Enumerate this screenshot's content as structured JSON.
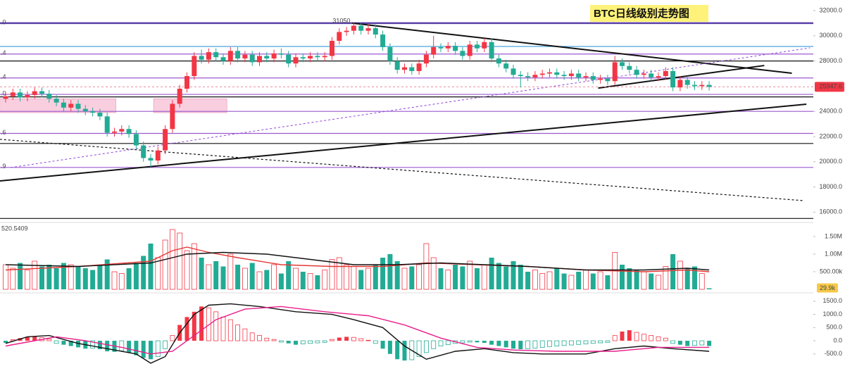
{
  "chart_data": [
    {
      "type": "candlestick",
      "title": "BTC日线级别走势图",
      "up_color": "#f23645",
      "down_color": "#22ab94",
      "open": [
        25000,
        25200,
        25500,
        25100,
        25300,
        25600,
        25400,
        25000,
        24700,
        24300,
        24600,
        24200,
        24000,
        23900,
        23600,
        22300,
        22400,
        22600,
        22200,
        21300,
        20300,
        20100,
        20900,
        22600,
        24600,
        25800,
        26800,
        28400,
        28100,
        28700,
        28300,
        28000,
        28800,
        28200,
        28500,
        27900,
        28400,
        28200,
        28600,
        28500,
        27800,
        28300,
        28200,
        28400,
        28300,
        28400,
        29600,
        30300,
        30400,
        30800,
        30400,
        30600,
        30100,
        29100,
        28000,
        27300,
        27500,
        27200,
        27800,
        28500,
        29100,
        29000,
        29200,
        28800,
        28400,
        29300,
        29000,
        29500,
        28200,
        27800,
        27400,
        26900,
        26800,
        26700,
        26900,
        27000,
        27100,
        26900,
        26800,
        27000,
        26700,
        26800,
        26500,
        26600,
        26400,
        27900,
        27600,
        27300,
        26900,
        27000,
        26700,
        26800,
        27200,
        25900,
        26500,
        26100,
        26000,
        26100
      ],
      "high": [
        25500,
        25800,
        25800,
        25600,
        25900,
        25900,
        25700,
        25300,
        25000,
        24900,
        24900,
        24500,
        24300,
        24200,
        23900,
        22700,
        22900,
        22900,
        22500,
        21600,
        20600,
        21200,
        22900,
        24900,
        26100,
        27100,
        28700,
        28900,
        29000,
        29000,
        28600,
        29100,
        29100,
        28800,
        28800,
        28700,
        28700,
        28900,
        29000,
        28800,
        28600,
        28600,
        28700,
        28700,
        28700,
        29900,
        30600,
        30700,
        31050,
        31000,
        30900,
        30900,
        30400,
        29400,
        28300,
        27800,
        27800,
        28100,
        28800,
        30000,
        29400,
        29500,
        29500,
        29100,
        29600,
        29600,
        29800,
        29800,
        28500,
        28100,
        27700,
        27200,
        27100,
        27200,
        27300,
        27400,
        27400,
        27200,
        27300,
        27300,
        27100,
        27100,
        26900,
        26900,
        28400,
        28200,
        27900,
        27600,
        27300,
        27300,
        27100,
        27500,
        27500,
        26800,
        26800,
        26400,
        26400,
        26400
      ],
      "low": [
        24700,
        24900,
        24800,
        24800,
        25000,
        25100,
        24700,
        24400,
        24000,
        24000,
        23900,
        23700,
        23600,
        23300,
        22000,
        22000,
        22100,
        21900,
        21000,
        20000,
        19600,
        19800,
        20600,
        22300,
        24300,
        25500,
        26500,
        27800,
        27800,
        28000,
        27700,
        27700,
        27900,
        27900,
        27600,
        27600,
        27900,
        27900,
        28200,
        27500,
        27500,
        27900,
        27900,
        28000,
        28000,
        28100,
        29300,
        30000,
        30100,
        30100,
        30100,
        29800,
        28800,
        27700,
        27000,
        27000,
        26900,
        26900,
        27500,
        28200,
        28700,
        28700,
        28500,
        28100,
        28100,
        28700,
        28700,
        27900,
        27500,
        27100,
        26600,
        25900,
        26400,
        26400,
        26600,
        26700,
        26600,
        26500,
        26500,
        26400,
        26400,
        26200,
        26200,
        26100,
        26100,
        27300,
        27000,
        26600,
        26600,
        26400,
        26400,
        26500,
        25600,
        25600,
        25800,
        25700,
        25700,
        25650
      ],
      "close": [
        25200,
        25500,
        25100,
        25300,
        25600,
        25400,
        25000,
        24700,
        24300,
        24600,
        24200,
        24000,
        23900,
        23600,
        22300,
        22400,
        22600,
        22200,
        21300,
        20300,
        20100,
        20900,
        22600,
        24600,
        25800,
        26800,
        28400,
        28100,
        28700,
        28300,
        28000,
        28800,
        28200,
        28500,
        27900,
        28400,
        28200,
        28600,
        28500,
        27800,
        28300,
        28200,
        28400,
        28300,
        28400,
        29600,
        30300,
        30400,
        30800,
        30400,
        30600,
        30100,
        29100,
        28000,
        27300,
        27500,
        27200,
        27800,
        28500,
        29100,
        29000,
        29200,
        28800,
        28400,
        29300,
        29000,
        29500,
        28200,
        27800,
        27400,
        26900,
        26800,
        26700,
        26900,
        27000,
        27100,
        26900,
        26800,
        27000,
        26700,
        26800,
        26500,
        26600,
        26400,
        27900,
        27600,
        27300,
        26900,
        27000,
        26700,
        26800,
        27200,
        25900,
        26500,
        26100,
        26000,
        26100,
        25947.6
      ],
      "ylim": [
        15350,
        32840
      ],
      "yticks": [
        {
          "value": 16000,
          "label": "16000.0"
        },
        {
          "value": 18000,
          "label": "18000.0"
        },
        {
          "value": 20000,
          "label": "20000.0"
        },
        {
          "value": 22000,
          "label": "22000.0"
        },
        {
          "value": 24000,
          "label": "24000.0"
        },
        {
          "value": 28000,
          "label": "28000.0"
        },
        {
          "value": 30000,
          "label": "30000.0"
        },
        {
          "value": 32000,
          "label": "32000.0"
        }
      ],
      "levels": [
        {
          "price": 31000,
          "color": "#5b3fa8",
          "width": 2.5,
          "label": ".0"
        },
        {
          "price": 29150,
          "color": "#4aa3df",
          "width": 1.2
        },
        {
          "price": 28550,
          "color": "#9b59d0",
          "width": 1.2,
          "label": ".4"
        },
        {
          "price": 28000,
          "color": "#111111",
          "width": 1.2
        },
        {
          "price": 26650,
          "color": "#9b59d0",
          "width": 1.2,
          "label": ".4"
        },
        {
          "price": 25350,
          "color": "#9b59d0",
          "width": 1.2,
          "label": ".0"
        },
        {
          "price": 25150,
          "color": "#111111",
          "width": 1.2
        },
        {
          "price": 24000,
          "color": "#9b59d0",
          "width": 1.2
        },
        {
          "price": 22250,
          "color": "#9b59d0",
          "width": 1.2,
          "label": ".6"
        },
        {
          "price": 21450,
          "color": "#111111",
          "width": 1.2
        },
        {
          "price": 19550,
          "color": "#9b59d0",
          "width": 1.2,
          "label": ".9"
        },
        {
          "price": 15500,
          "color": "#111111",
          "width": 1.2
        }
      ],
      "trendlines": [
        {
          "points": [
            [
              47.8,
              31000
            ],
            [
              108.4,
              27030
            ]
          ],
          "color": "#111111",
          "width": 2
        },
        {
          "points": [
            [
              -0.8,
              18480
            ],
            [
              110.4,
              24570
            ]
          ],
          "color": "#111111",
          "width": 2
        },
        {
          "points": [
            [
              81.7,
              25850
            ],
            [
              104.6,
              27640
            ]
          ],
          "color": "#111111",
          "width": 2
        },
        {
          "points": [
            [
              0.7,
              19540
            ],
            [
              110.9,
              29040
            ]
          ],
          "color": "#8e44d8",
          "width": 1,
          "dash": true
        },
        {
          "points": [
            [
              -0.8,
              21780
            ],
            [
              109.9,
              16920
            ]
          ],
          "color": "#111111",
          "width": 1.2,
          "dash": true
        }
      ],
      "zones": [
        {
          "x": [
            -0.8,
            15.2
          ],
          "y": [
            23900,
            25000
          ],
          "color": "#f9cfe0"
        },
        {
          "x": [
            20.4,
            30.5
          ],
          "y": [
            23900,
            25000
          ],
          "color": "#f9cfe0"
        }
      ]
    },
    {
      "type": "volume",
      "header": "520.5409",
      "values": [
        700000,
        600000,
        750000,
        550000,
        800000,
        650000,
        700000,
        600000,
        750000,
        700000,
        650000,
        600000,
        550000,
        700000,
        850000,
        500000,
        450000,
        600000,
        750000,
        950000,
        1300000,
        900000,
        1400000,
        1700000,
        1600000,
        1100000,
        1300000,
        900000,
        700000,
        800000,
        650000,
        1000000,
        700000,
        600000,
        750000,
        500000,
        550000,
        700000,
        450000,
        800000,
        600000,
        500000,
        450000,
        400000,
        550000,
        850000,
        900000,
        700000,
        650000,
        550000,
        600000,
        700000,
        900000,
        1000000,
        800000,
        600000,
        650000,
        700000,
        1300000,
        900000,
        600000,
        550000,
        700000,
        650000,
        800000,
        600000,
        700000,
        900000,
        750000,
        650000,
        800000,
        700000,
        500000,
        550000,
        450000,
        500000,
        600000,
        450000,
        400000,
        500000,
        550000,
        450000,
        500000,
        400000,
        1050000,
        700000,
        600000,
        550000,
        500000,
        450000,
        400000,
        650000,
        1000000,
        800000,
        600000,
        650000,
        450000,
        29900
      ],
      "current": {
        "value": 29900,
        "label": "29.9k"
      },
      "ylim": [
        0,
        1800000
      ],
      "yticks": [
        {
          "value": 500000,
          "label": "500.00k"
        },
        {
          "value": 1000000,
          "label": "1.00M"
        },
        {
          "value": 1500000,
          "label": "1.50M"
        }
      ],
      "series": [
        {
          "name": "MA fast",
          "color": "#e53935",
          "x": [
            0,
            10,
            20,
            23,
            25,
            28,
            32,
            38,
            45,
            52,
            58,
            65,
            72,
            80,
            88,
            94,
            97
          ],
          "values": [
            550000,
            650000,
            800000,
            1100000,
            1200000,
            1050000,
            900000,
            700000,
            650000,
            650000,
            750000,
            700000,
            650000,
            550000,
            500000,
            550000,
            500000
          ]
        },
        {
          "name": "MA slow",
          "color": "#111111",
          "x": [
            0,
            10,
            20,
            25,
            30,
            36,
            42,
            48,
            54,
            60,
            66,
            72,
            80,
            88,
            94,
            97
          ],
          "values": [
            700000,
            650000,
            750000,
            1000000,
            1050000,
            1000000,
            850000,
            700000,
            700000,
            750000,
            700000,
            650000,
            550000,
            550000,
            600000,
            550000
          ]
        }
      ]
    },
    {
      "type": "macd",
      "values": [
        -80,
        40,
        100,
        150,
        170,
        120,
        60,
        -100,
        -150,
        -200,
        -250,
        -300,
        -280,
        -320,
        -400,
        -420,
        -380,
        -450,
        -550,
        -650,
        -700,
        -600,
        -300,
        200,
        600,
        900,
        1100,
        1300,
        1250,
        1100,
        900,
        800,
        600,
        450,
        300,
        200,
        100,
        50,
        -50,
        -100,
        -150,
        -120,
        -100,
        -80,
        -60,
        50,
        120,
        150,
        130,
        80,
        20,
        -100,
        -300,
        -500,
        -700,
        -750,
        -720,
        -600,
        -450,
        -300,
        -200,
        -150,
        -100,
        -80,
        -50,
        -60,
        -80,
        -150,
        -200,
        -250,
        -300,
        -320,
        -300,
        -280,
        -250,
        -220,
        -200,
        -180,
        -160,
        -140,
        -120,
        -100,
        -80,
        -60,
        200,
        350,
        400,
        320,
        250,
        200,
        150,
        100,
        -100,
        -150,
        -200,
        -180,
        -160,
        -200
      ],
      "ylim": [
        -960,
        1710
      ],
      "yticks": [
        {
          "value": -500,
          "label": "-500.0"
        },
        {
          "value": 0,
          "label": "0.0"
        },
        {
          "value": 500,
          "label": "500.0"
        },
        {
          "value": 1000,
          "label": "1000.0"
        },
        {
          "value": 1500,
          "label": "1500.0"
        }
      ],
      "series": [
        {
          "name": "MACD",
          "color": "#111111",
          "x": [
            0,
            3,
            6,
            10,
            14,
            18,
            20,
            22,
            24,
            26,
            28,
            31,
            35,
            40,
            45,
            48,
            52,
            55,
            58,
            62,
            66,
            70,
            74,
            80,
            84,
            88,
            92,
            97
          ],
          "values": [
            -100,
            150,
            200,
            -100,
            -300,
            -500,
            -850,
            -600,
            300,
            1000,
            1350,
            1400,
            1300,
            1100,
            1000,
            800,
            500,
            -200,
            -700,
            -400,
            -300,
            -450,
            -500,
            -500,
            -300,
            -200,
            -300,
            -400
          ]
        },
        {
          "name": "Signal",
          "color": "#e91e8c",
          "x": [
            0,
            4,
            7,
            11,
            16,
            20,
            23,
            26,
            29,
            33,
            38,
            44,
            50,
            55,
            60,
            65,
            70,
            76,
            84,
            90,
            97
          ],
          "values": [
            -200,
            0,
            150,
            0,
            -250,
            -500,
            -400,
            200,
            800,
            1200,
            1300,
            1100,
            950,
            600,
            100,
            -250,
            -350,
            -400,
            -400,
            -250,
            -250
          ]
        }
      ]
    }
  ]
}
